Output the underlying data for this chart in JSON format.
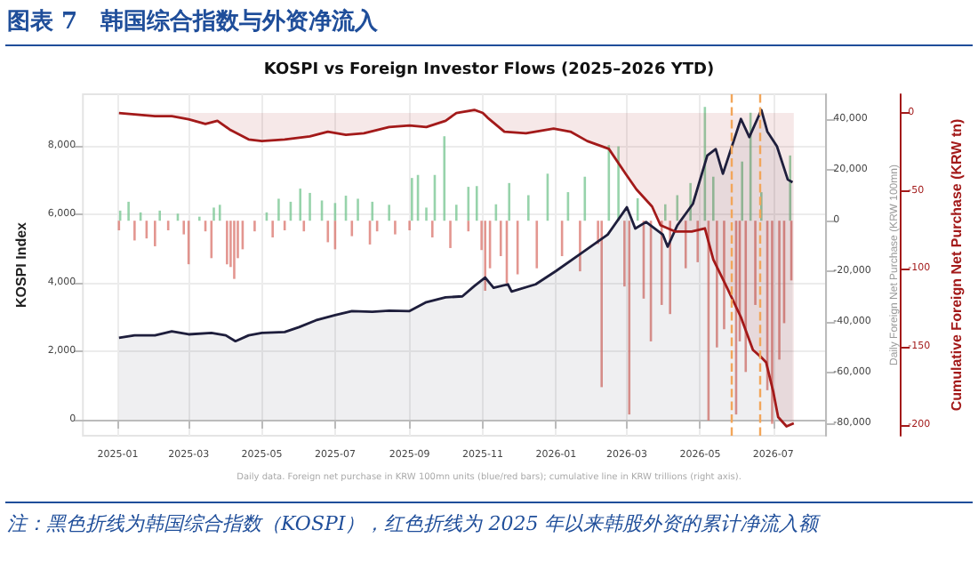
{
  "chart_data": {
    "type": "area",
    "title": "图表 7　韩国综合指数与外资净流入",
    "subtitle": "KOSPI vs Foreign Investor Flows (2025–2026 YTD)",
    "ylabel": "KOSPI Index",
    "y2label": "Daily Foreign Net Purchase (KRW 100mn)",
    "y3label": "Cumulative Foreign Net Purchase (KRW tn)",
    "annotations": [
      "Daily data. Foreign net purchase in KRW 100mn units (blue/red bars); cumulative line in KRW trillions (right axis).",
      "注：黑色折线为韩国综合指数（KOSPI），红色折线为 2025 年以来韩股外资的累计净流入额"
    ],
    "xlim": [
      "2024-12-03",
      "2026-08-14"
    ],
    "xticks": [
      "2025-01",
      "2025-03",
      "2025-05",
      "2025-07",
      "2025-09",
      "2025-11",
      "2026-01",
      "2026-03",
      "2026-05",
      "2026-07"
    ],
    "ylim": [
      -470,
      9500
    ],
    "yticks": [
      0,
      {
        "value": 2000,
        "label": "2,000"
      },
      {
        "value": 4000,
        "label": "4,000"
      },
      {
        "value": 6000,
        "label": "6,000"
      },
      {
        "value": 8000,
        "label": "8,000"
      }
    ],
    "y2lim": [
      -85000,
      50000
    ],
    "y2ticks": [
      {
        "value": -80000,
        "label": "-80,000"
      },
      {
        "value": -60000,
        "label": "-60,000"
      },
      {
        "value": -40000,
        "label": "-40,000"
      },
      {
        "value": -20000,
        "label": "-20,000"
      },
      0,
      {
        "value": 20000,
        "label": "20,000"
      },
      {
        "value": 40000,
        "label": "40,000"
      }
    ],
    "y3lim": [
      -207,
      12
    ],
    "y3ticks": [
      -200,
      -150,
      -100,
      -50,
      0
    ],
    "grid": true,
    "marker": "none",
    "line_style": "solid",
    "ref_lines": [
      {
        "axis": "x",
        "value": "2026-05-27",
        "color": "#f2a65a",
        "line_style": "dashed"
      },
      {
        "axis": "x",
        "value": "2026-06-19",
        "color": "#f2a65a",
        "line_style": "dashed"
      }
    ],
    "series": [
      {
        "type": "bar",
        "axis": "y2",
        "color": "#74c48f",
        "x": [
          "2025-01-03",
          "2025-01-10",
          "2025-01-20",
          "2025-02-05",
          "2025-02-20",
          "2025-03-10",
          "2025-03-22",
          "2025-03-27",
          "2025-05-05",
          "2025-05-15",
          "2025-05-25",
          "2025-06-02",
          "2025-06-10",
          "2025-06-20",
          "2025-07-01",
          "2025-07-10",
          "2025-07-20",
          "2025-08-01",
          "2025-08-15",
          "2025-09-03",
          "2025-09-08",
          "2025-09-15",
          "2025-09-22",
          "2025-09-30",
          "2025-10-10",
          "2025-10-20",
          "2025-10-27",
          "2025-11-12",
          "2025-11-23",
          "2025-12-09",
          "2025-12-25",
          "2026-01-11",
          "2026-01-25",
          "2026-02-14",
          "2026-02-22",
          "2026-03-10",
          "2026-04-02",
          "2026-04-12",
          "2026-04-23",
          "2026-05-05",
          "2026-05-12",
          "2026-06-05",
          "2026-06-12",
          "2026-06-21",
          "2026-07-15"
        ],
        "values": [
          4000,
          7500,
          3300,
          4000,
          2800,
          1600,
          5200,
          6300,
          3300,
          8700,
          7500,
          12700,
          11000,
          8000,
          7000,
          9900,
          8700,
          7500,
          6300,
          16900,
          18100,
          5200,
          18100,
          33400,
          6300,
          13400,
          13700,
          6500,
          14900,
          10100,
          18600,
          11300,
          17400,
          29900,
          29400,
          8900,
          6500,
          10100,
          14900,
          45000,
          17400,
          23400,
          42700,
          11300,
          25800
        ]
      },
      {
        "type": "bar",
        "axis": "y2",
        "color": "#d9736b",
        "x": [
          "2025-01-02",
          "2025-01-15",
          "2025-01-25",
          "2025-02-01",
          "2025-02-12",
          "2025-02-25",
          "2025-03-01",
          "2025-03-15",
          "2025-03-20",
          "2025-04-02",
          "2025-04-05",
          "2025-04-08",
          "2025-04-11",
          "2025-04-15",
          "2025-04-25",
          "2025-05-10",
          "2025-05-20",
          "2025-06-05",
          "2025-06-25",
          "2025-07-01",
          "2025-07-15",
          "2025-07-30",
          "2025-08-05",
          "2025-08-20",
          "2025-09-01",
          "2025-09-20",
          "2025-10-05",
          "2025-10-20",
          "2025-10-31",
          "2025-11-03",
          "2025-11-07",
          "2025-11-16",
          "2025-11-21",
          "2025-11-30",
          "2025-12-16",
          "2026-01-06",
          "2026-01-21",
          "2026-02-05",
          "2026-02-08",
          "2026-02-27",
          "2026-03-03",
          "2026-03-15",
          "2026-03-21",
          "2026-03-30",
          "2026-04-06",
          "2026-04-19",
          "2026-04-29",
          "2026-05-08",
          "2026-05-15",
          "2026-05-21",
          "2026-05-31",
          "2026-06-03",
          "2026-06-08",
          "2026-06-16",
          "2026-06-26",
          "2026-06-30",
          "2026-07-06",
          "2026-07-10",
          "2026-07-16"
        ],
        "values": [
          -3800,
          -7800,
          -7000,
          -10100,
          -3800,
          -5400,
          -17200,
          -4200,
          -14800,
          -17200,
          -18300,
          -23000,
          -14800,
          -11300,
          -4200,
          -6600,
          -3800,
          -4200,
          -8500,
          -11300,
          -6100,
          -9400,
          -4200,
          -5400,
          -3800,
          -6600,
          -10800,
          -4200,
          -11600,
          -27700,
          -18800,
          -14000,
          -24800,
          -21200,
          -18800,
          -14000,
          -20000,
          -9200,
          -65800,
          -26000,
          -76600,
          -30800,
          -47700,
          -33300,
          -36900,
          -18800,
          -16400,
          -79000,
          -50100,
          -42900,
          -76600,
          -47700,
          -59800,
          -33300,
          -67000,
          -80300,
          -54900,
          -40500,
          -23600
        ]
      },
      {
        "axis": "y",
        "color": "#1e1e3c",
        "x": [
          "2025-01-02",
          "2025-01-15",
          "2025-02-01",
          "2025-02-15",
          "2025-03-01",
          "2025-03-20",
          "2025-04-01",
          "2025-04-09",
          "2025-04-20",
          "2025-05-01",
          "2025-05-20",
          "2025-06-01",
          "2025-06-15",
          "2025-07-01",
          "2025-07-15",
          "2025-08-01",
          "2025-08-15",
          "2025-09-01",
          "2025-09-15",
          "2025-10-01",
          "2025-10-15",
          "2025-10-25",
          "2025-11-03",
          "2025-11-10",
          "2025-11-22",
          "2025-11-25",
          "2025-12-15",
          "2026-01-01",
          "2026-01-23",
          "2026-02-13",
          "2026-03-01",
          "2026-03-08",
          "2026-03-17",
          "2026-03-31",
          "2026-04-04",
          "2026-04-12",
          "2026-04-25",
          "2026-05-07",
          "2026-05-14",
          "2026-05-20",
          "2026-06-04",
          "2026-06-11",
          "2026-06-21",
          "2026-06-26",
          "2026-07-04",
          "2026-07-13",
          "2026-07-17"
        ],
        "values": [
          2390,
          2460,
          2460,
          2580,
          2490,
          2530,
          2460,
          2290,
          2460,
          2530,
          2560,
          2700,
          2900,
          3050,
          3170,
          3150,
          3180,
          3170,
          3430,
          3570,
          3600,
          3900,
          4150,
          3850,
          3950,
          3740,
          3950,
          4340,
          4880,
          5400,
          6200,
          5580,
          5770,
          5400,
          5050,
          5670,
          6300,
          7710,
          7900,
          7180,
          8780,
          8250,
          9040,
          8410,
          7980,
          7010,
          6930
        ]
      },
      {
        "axis": "y3",
        "color": "#a31a1a",
        "x": [
          "2025-01-02",
          "2025-02-01",
          "2025-02-15",
          "2025-03-01",
          "2025-03-15",
          "2025-03-25",
          "2025-04-05",
          "2025-04-20",
          "2025-05-01",
          "2025-05-20",
          "2025-06-10",
          "2025-06-25",
          "2025-07-10",
          "2025-07-25",
          "2025-08-15",
          "2025-09-01",
          "2025-09-15",
          "2025-10-01",
          "2025-10-10",
          "2025-10-25",
          "2025-11-01",
          "2025-11-05",
          "2025-11-19",
          "2025-12-07",
          "2025-12-30",
          "2026-01-13",
          "2026-01-27",
          "2026-02-14",
          "2026-02-28",
          "2026-03-09",
          "2026-03-22",
          "2026-03-29",
          "2026-04-10",
          "2026-04-24",
          "2026-05-05",
          "2026-05-12",
          "2026-05-24",
          "2026-06-04",
          "2026-06-14",
          "2026-06-20",
          "2026-06-25",
          "2026-07-01",
          "2026-07-05",
          "2026-07-12",
          "2026-07-18"
        ],
        "values": [
          0,
          -2,
          -2,
          -4,
          -7,
          -5,
          -11,
          -17,
          -18,
          -17,
          -15,
          -12,
          -14,
          -13,
          -9,
          -8,
          -9,
          -5,
          0,
          2,
          0,
          -3,
          -12,
          -13,
          -10,
          -12,
          -18,
          -23,
          -39,
          -49,
          -60,
          -72,
          -76,
          -76,
          -74,
          -94,
          -113,
          -131,
          -152,
          -156,
          -160,
          -179,
          -195,
          -201,
          -199
        ]
      }
    ]
  }
}
